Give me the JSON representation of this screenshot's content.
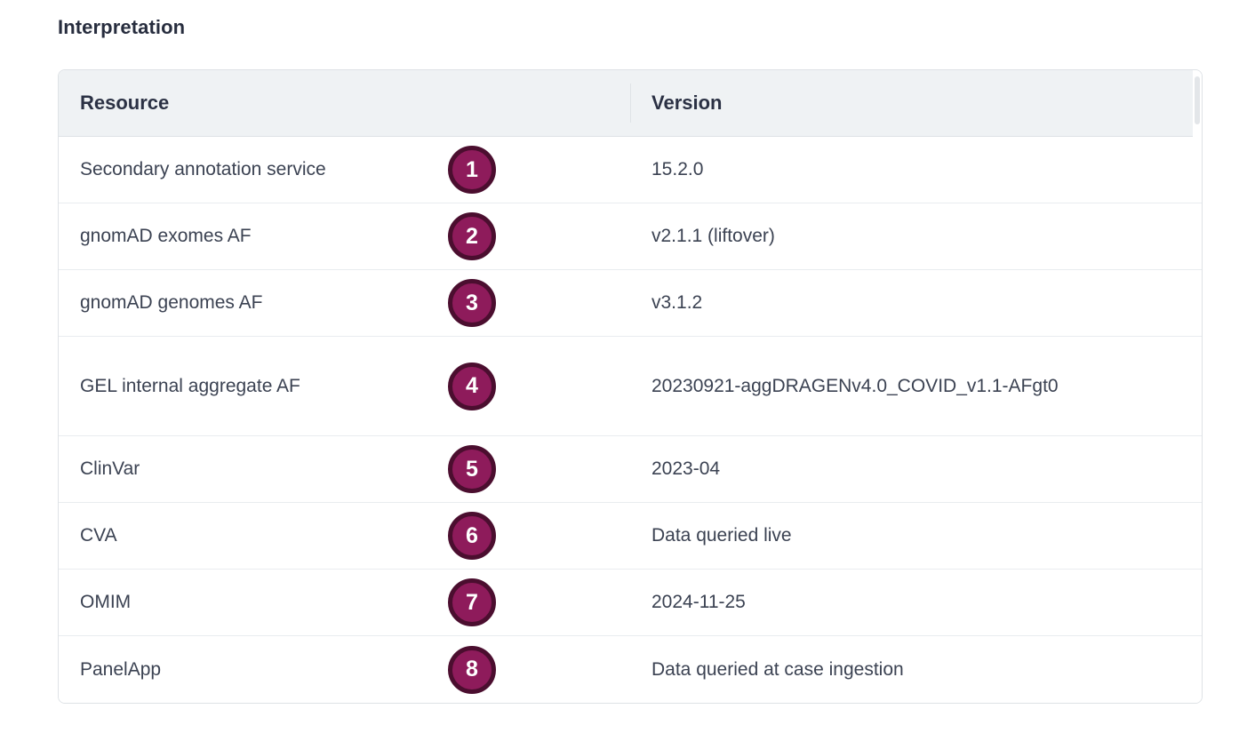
{
  "page": {
    "title": "Interpretation"
  },
  "table": {
    "columns": [
      {
        "label": "Resource"
      },
      {
        "label": "Version"
      }
    ],
    "rows": [
      {
        "num": "1",
        "resource": "Secondary annotation service",
        "version": "15.2.0"
      },
      {
        "num": "2",
        "resource": "gnomAD exomes AF",
        "version": "v2.1.1 (liftover)"
      },
      {
        "num": "3",
        "resource": "gnomAD genomes AF",
        "version": "v3.1.2"
      },
      {
        "num": "4",
        "resource": "GEL internal aggregate AF",
        "version": "20230921-aggDRAGENv4.0_COVID_v1.1-AFgt0"
      },
      {
        "num": "5",
        "resource": "ClinVar",
        "version": "2023-04"
      },
      {
        "num": "6",
        "resource": "CVA",
        "version": "Data queried live"
      },
      {
        "num": "7",
        "resource": "OMIM",
        "version": "2024-11-25"
      },
      {
        "num": "8",
        "resource": "PanelApp",
        "version": "Data queried at case ingestion"
      }
    ],
    "colors": {
      "badge_fill": "#8e1b5b",
      "badge_ring": "#4b0e2f",
      "header_bg": "#eff2f4",
      "card_border": "#dee2e6",
      "row_divider": "#e9ecef",
      "body_text": "#3b4252",
      "heading_text": "#272d3e"
    }
  }
}
